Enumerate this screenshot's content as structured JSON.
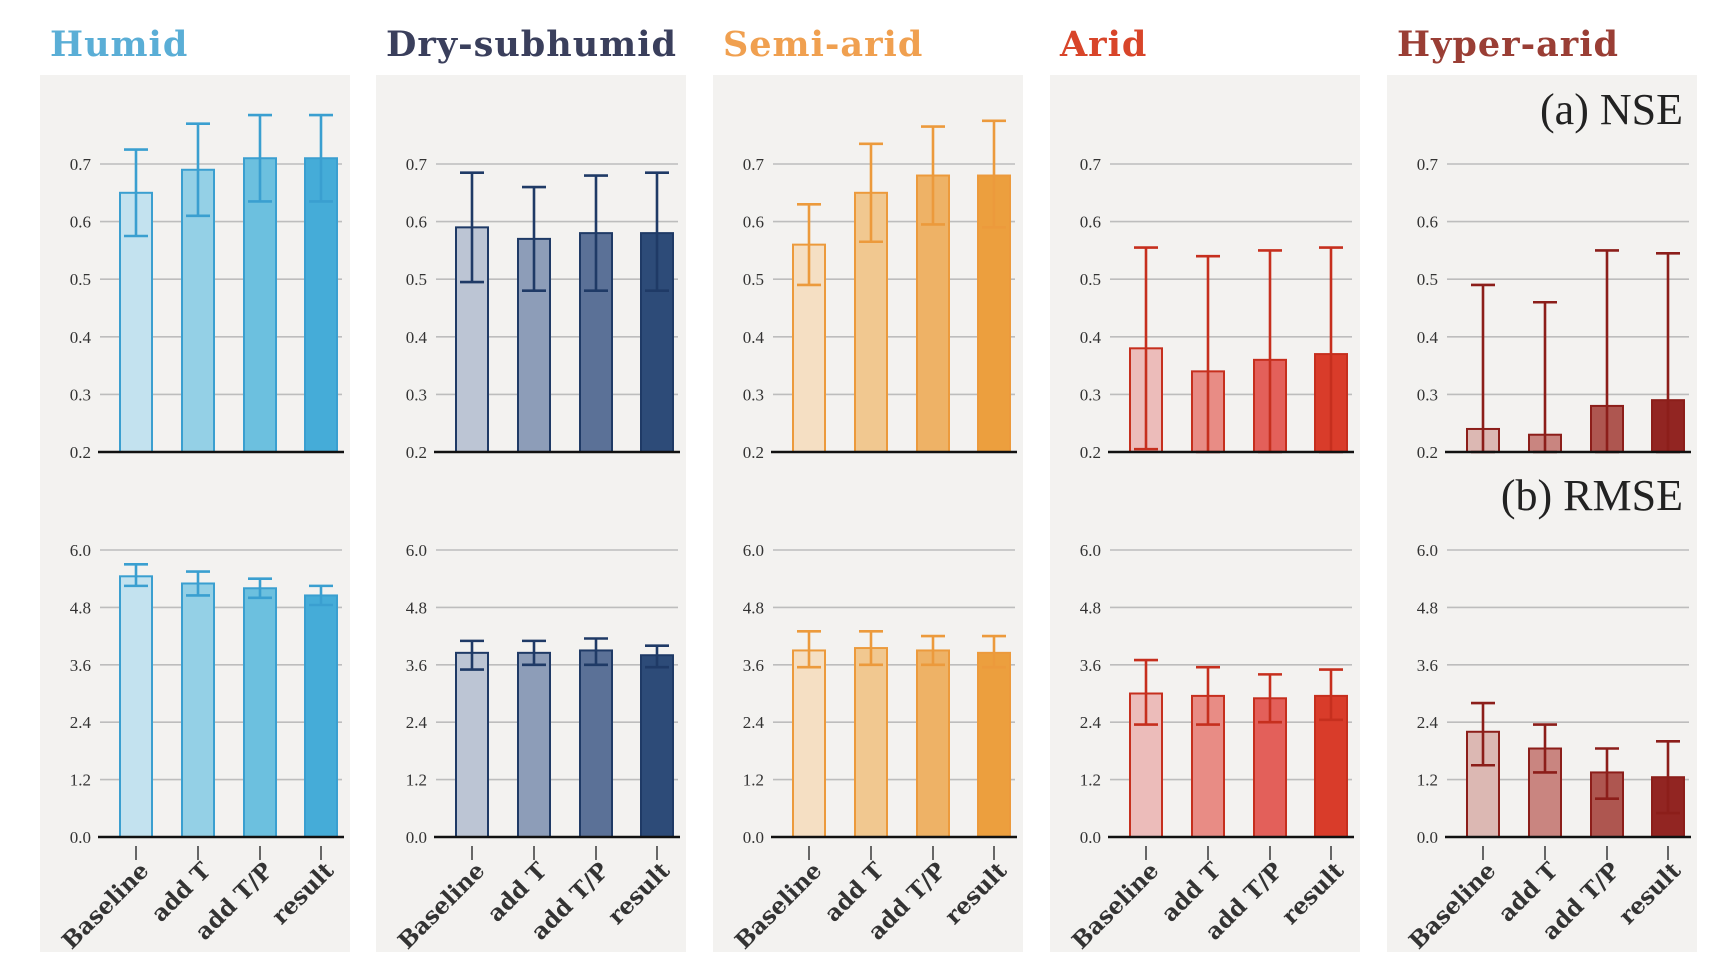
{
  "chart_data": {
    "type": "bar",
    "metrics": [
      {
        "key": "nse",
        "label": "(a) NSE",
        "ylim": [
          0.2,
          0.7
        ],
        "ticks": [
          "0.2",
          "0.3",
          "0.4",
          "0.5",
          "0.6",
          "0.7"
        ],
        "tick_values": [
          0.2,
          0.3,
          0.4,
          0.5,
          0.6,
          0.7
        ]
      },
      {
        "key": "rmse",
        "label": "(b) RMSE",
        "ylim": [
          0,
          6
        ],
        "ticks": [
          "0.0",
          "1.2",
          "2.4",
          "3.6",
          "4.8",
          "6.0"
        ],
        "tick_values": [
          0,
          1.2,
          2.4,
          3.6,
          4.8,
          6.0
        ]
      }
    ],
    "categories": [
      "Baseline",
      "add T",
      "add T/P",
      "result"
    ],
    "panels": [
      {
        "region": "Humid",
        "title_color": "#5aaed6",
        "edge_color": "#3a9fd0",
        "fills": [
          "#c3e2ef",
          "#94d0e6",
          "#6cc0df",
          "#45acd8"
        ],
        "nse": {
          "values": [
            0.65,
            0.69,
            0.71,
            0.71
          ],
          "err_lo": [
            0.575,
            0.61,
            0.635,
            0.635
          ],
          "err_hi": [
            0.725,
            0.77,
            0.785,
            0.785
          ]
        },
        "rmse": {
          "values": [
            5.45,
            5.3,
            5.2,
            5.05
          ],
          "err_lo": [
            5.25,
            5.05,
            5.0,
            4.85
          ],
          "err_hi": [
            5.7,
            5.55,
            5.4,
            5.25
          ]
        }
      },
      {
        "region": "Dry-subhumid",
        "title_color": "#3a3f5c",
        "edge_color": "#1f3a66",
        "fills": [
          "#bcc5d4",
          "#8d9db8",
          "#5b7197",
          "#2d4b78"
        ],
        "nse": {
          "values": [
            0.59,
            0.57,
            0.58,
            0.58
          ],
          "err_lo": [
            0.495,
            0.48,
            0.48,
            0.48
          ],
          "err_hi": [
            0.685,
            0.66,
            0.68,
            0.685
          ]
        },
        "rmse": {
          "values": [
            3.85,
            3.85,
            3.9,
            3.8
          ],
          "err_lo": [
            3.5,
            3.6,
            3.6,
            3.55
          ],
          "err_hi": [
            4.1,
            4.1,
            4.15,
            4.0
          ]
        }
      },
      {
        "region": "Semi-arid",
        "title_color": "#f0a050",
        "edge_color": "#ec9a3c",
        "fills": [
          "#f5dfc3",
          "#f1c890",
          "#eeb266",
          "#ec9f3e"
        ],
        "nse": {
          "values": [
            0.56,
            0.65,
            0.68,
            0.68
          ],
          "err_lo": [
            0.49,
            0.565,
            0.595,
            0.59
          ],
          "err_hi": [
            0.63,
            0.735,
            0.765,
            0.775
          ]
        },
        "rmse": {
          "values": [
            3.9,
            3.95,
            3.9,
            3.85
          ],
          "err_lo": [
            3.55,
            3.6,
            3.6,
            3.55
          ],
          "err_hi": [
            4.3,
            4.3,
            4.2,
            4.2
          ]
        }
      },
      {
        "region": "Arid",
        "title_color": "#d8452a",
        "edge_color": "#c62f1e",
        "fills": [
          "#ecbcba",
          "#e88c85",
          "#e3605a",
          "#d93c2a"
        ],
        "nse": {
          "values": [
            0.38,
            0.34,
            0.36,
            0.37
          ],
          "err_lo": [
            0.205,
            0.2,
            0.2,
            0.2
          ],
          "err_hi": [
            0.555,
            0.54,
            0.55,
            0.555
          ]
        },
        "rmse": {
          "values": [
            3.0,
            2.95,
            2.9,
            2.95
          ],
          "err_lo": [
            2.35,
            2.35,
            2.4,
            2.45
          ],
          "err_hi": [
            3.7,
            3.55,
            3.4,
            3.5
          ]
        }
      },
      {
        "region": "Hyper-arid",
        "title_color": "#9a3e35",
        "edge_color": "#8c1e1a",
        "fills": [
          "#dcb8b3",
          "#c98580",
          "#ae5650",
          "#922522"
        ],
        "nse": {
          "values": [
            0.24,
            0.23,
            0.28,
            0.29
          ],
          "err_lo": [
            0.2,
            0.2,
            0.2,
            0.2
          ],
          "err_hi": [
            0.49,
            0.46,
            0.55,
            0.545
          ]
        },
        "rmse": {
          "values": [
            2.2,
            1.85,
            1.35,
            1.25
          ],
          "err_lo": [
            1.5,
            1.35,
            0.8,
            0.5
          ],
          "err_hi": [
            2.8,
            2.35,
            1.85,
            2.0
          ]
        }
      }
    ]
  },
  "panel_background": "#f3f2f0",
  "grid_color": "#bdbdbd"
}
